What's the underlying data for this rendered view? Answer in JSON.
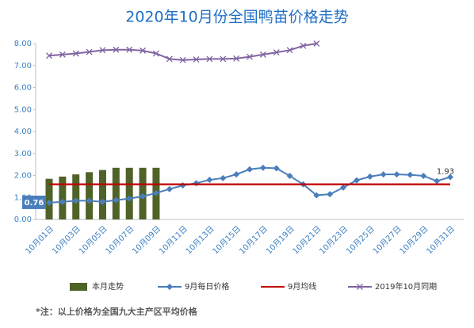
{
  "chart_data": {
    "type": "bar-line",
    "title": "2020年10月份全国鸭苗价格走势",
    "note": "*注：以上价格为全国九大主产区平均价格",
    "categories": [
      "10月01日",
      null,
      "10月03日",
      null,
      "10月05日",
      null,
      "10月07日",
      null,
      "10月09日",
      null,
      "10月11日",
      null,
      "10月13日",
      null,
      "10月15日",
      null,
      "10月17日",
      null,
      "10月19日",
      null,
      "10月21日",
      null,
      "10月23日",
      null,
      "10月25日",
      null,
      "10月27日",
      null,
      "10月29日",
      null,
      "10月31日"
    ],
    "ylim": [
      0,
      8
    ],
    "yticks": [
      {
        "value": 0,
        "label": "0.00"
      },
      {
        "value": 1,
        "label": "1.00"
      },
      {
        "value": 2,
        "label": "2.00"
      },
      {
        "value": 3,
        "label": "3.00"
      },
      {
        "value": 4,
        "label": "4.00"
      },
      {
        "value": 5,
        "label": "5.00"
      },
      {
        "value": 6,
        "label": "6.00"
      },
      {
        "value": 7,
        "label": "7.00"
      },
      {
        "value": 8,
        "label": "8.00"
      }
    ],
    "grid": false,
    "legend": "bottom",
    "series": [
      {
        "name": "本月走势",
        "kind": "bar",
        "color": "#4f6228",
        "values": [
          1.85,
          1.95,
          2.05,
          2.15,
          2.25,
          2.35,
          2.35,
          2.35,
          2.35,
          null,
          null,
          null,
          null,
          null,
          null,
          null,
          null,
          null,
          null,
          null,
          null,
          null,
          null,
          null,
          null,
          null,
          null,
          null,
          null,
          null,
          null
        ]
      },
      {
        "name": "9月每日价格",
        "kind": "line",
        "marker": "diamond",
        "color": "#4a7ebb",
        "values": [
          0.76,
          0.8,
          0.85,
          0.85,
          0.8,
          0.88,
          0.95,
          1.05,
          1.2,
          1.38,
          1.55,
          1.65,
          1.8,
          1.88,
          2.05,
          2.28,
          2.35,
          2.33,
          1.98,
          1.6,
          1.1,
          1.15,
          1.45,
          1.78,
          1.95,
          2.05,
          2.05,
          2.03,
          1.98,
          1.75,
          1.93
        ],
        "value_labels": [
          "0.76",
          null,
          null,
          null,
          null,
          null,
          null,
          null,
          null,
          null,
          null,
          null,
          null,
          null,
          null,
          null,
          null,
          null,
          null,
          null,
          null,
          null,
          null,
          null,
          null,
          null,
          null,
          null,
          null,
          null,
          "1.93"
        ]
      },
      {
        "name": "9月均线",
        "kind": "line",
        "marker": "none",
        "color": "#c00000",
        "values": [
          1.6,
          1.6,
          1.6,
          1.6,
          1.6,
          1.6,
          1.6,
          1.6,
          1.6,
          1.6,
          1.6,
          1.6,
          1.6,
          1.6,
          1.6,
          1.6,
          1.6,
          1.6,
          1.6,
          1.6,
          1.6,
          1.6,
          1.6,
          1.6,
          1.6,
          1.6,
          1.6,
          1.6,
          1.6,
          1.6,
          1.6
        ]
      },
      {
        "name": "2019年10月同期",
        "kind": "line",
        "marker": "x",
        "color": "#8064a2",
        "values": [
          7.45,
          7.5,
          7.55,
          7.62,
          7.7,
          7.72,
          7.72,
          7.68,
          7.55,
          7.3,
          7.25,
          7.28,
          7.3,
          7.3,
          7.32,
          7.4,
          7.5,
          7.6,
          7.7,
          7.9,
          8.0,
          null,
          null,
          null,
          null,
          null,
          null,
          null,
          null,
          null,
          null
        ]
      }
    ]
  }
}
